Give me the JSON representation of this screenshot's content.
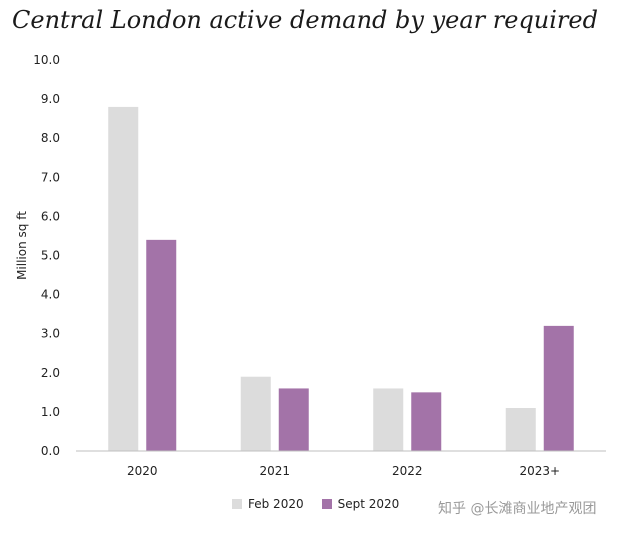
{
  "chart_data": {
    "type": "bar",
    "title": "Central London active demand by year required",
    "xlabel": "",
    "ylabel": "Million sq ft",
    "categories": [
      "2020",
      "2021",
      "2022",
      "2023+"
    ],
    "series": [
      {
        "name": "Feb 2020",
        "values": [
          8.8,
          1.9,
          1.6,
          1.1
        ],
        "color": "#dcdcdc"
      },
      {
        "name": "Sept 2020",
        "values": [
          5.4,
          1.6,
          1.5,
          3.2
        ],
        "color": "#a373a8"
      }
    ],
    "ylim": [
      0,
      10
    ],
    "yticks": [
      "0.0",
      "1.0",
      "2.0",
      "3.0",
      "4.0",
      "5.0",
      "6.0",
      "7.0",
      "8.0",
      "9.0",
      "10.0"
    ],
    "grid": false,
    "legend": "bottom"
  },
  "watermark": "知乎 @长滩商业地产观团"
}
